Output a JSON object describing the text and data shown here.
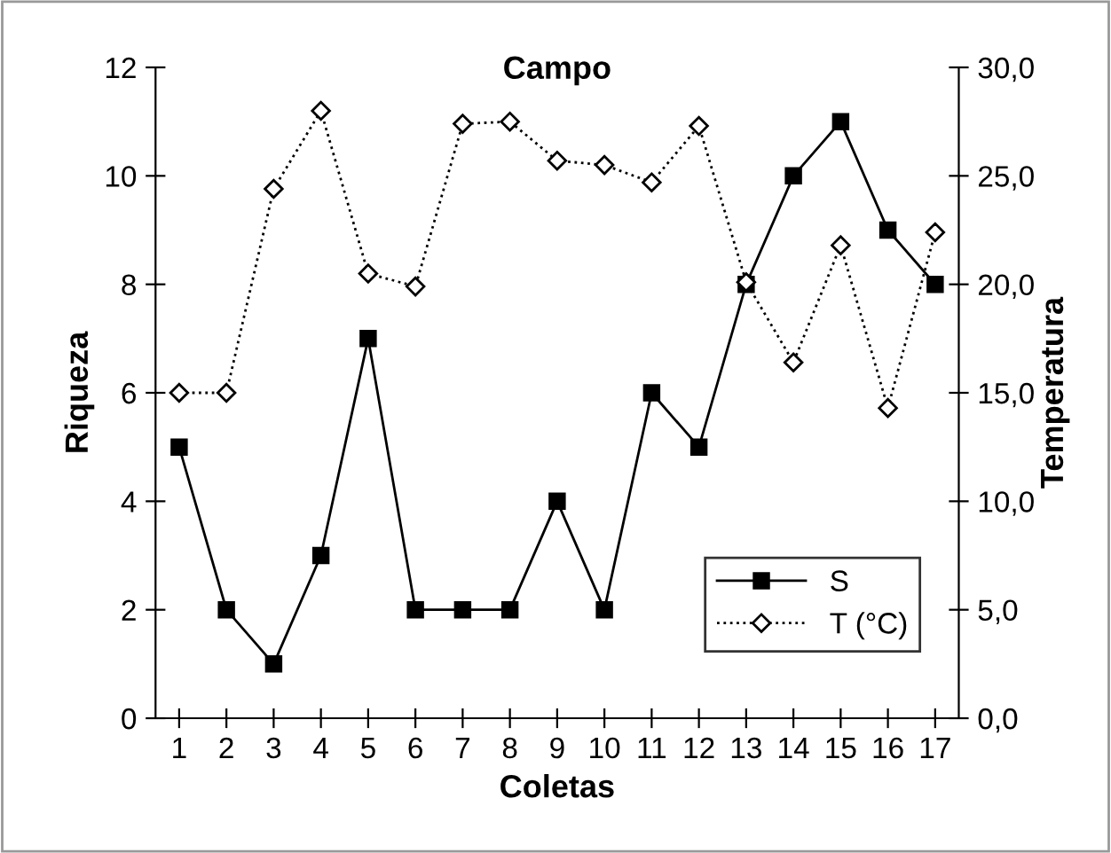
{
  "chart_data": {
    "type": "line",
    "title": "Campo",
    "xlabel": "Coletas",
    "ylabel": "Riqueza",
    "y2label": "Temperatura",
    "categories": [
      "1",
      "2",
      "3",
      "4",
      "5",
      "6",
      "7",
      "8",
      "9",
      "10",
      "11",
      "12",
      "13",
      "14",
      "15",
      "16",
      "17"
    ],
    "series": [
      {
        "name": "S",
        "color": "#000000",
        "marker": "square",
        "line_style": "solid",
        "values": [
          5,
          2,
          1,
          3,
          7,
          2,
          2,
          2,
          4,
          2,
          6,
          5,
          8,
          10,
          11,
          9,
          8
        ]
      },
      {
        "name": "T (°C)",
        "color": "#000000",
        "marker": "diamond",
        "line_style": "dotted",
        "axis": "y2",
        "values": [
          15.0,
          15.0,
          24.4,
          28.0,
          20.5,
          19.9,
          27.4,
          27.5,
          25.7,
          25.5,
          24.7,
          27.3,
          20.1,
          16.4,
          21.8,
          14.3,
          22.4
        ]
      }
    ],
    "ylim": [
      0,
      12
    ],
    "yticks": [
      0,
      2,
      4,
      6,
      8,
      10,
      12
    ],
    "y2lim": [
      0,
      30
    ],
    "y2ticks": [
      {
        "value": 0,
        "label": "0,0"
      },
      {
        "value": 5,
        "label": "5,0"
      },
      {
        "value": 10,
        "label": "10,0"
      },
      {
        "value": 15,
        "label": "15,0"
      },
      {
        "value": 20,
        "label": "20,0"
      },
      {
        "value": 25,
        "label": "25,0"
      },
      {
        "value": 30,
        "label": "30,0"
      }
    ],
    "legend": "bottom right",
    "grid": false
  }
}
